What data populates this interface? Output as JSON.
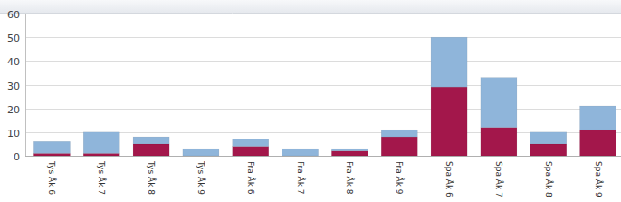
{
  "chart_data": {
    "type": "bar",
    "stacked": true,
    "grid": true,
    "categories": [
      "Tys Åk 6",
      "Tys Åk 7",
      "Tys Åk 8",
      "Tys Åk 9",
      "Fra Åk 6",
      "Fra Åk 7",
      "Fra Åk 8",
      "Fra Åk 9",
      "Spa Åk 6",
      "Spa Åk 7",
      "Spa Åk 8",
      "Spa Åk 9"
    ],
    "series": [
      {
        "color": "#a3174b",
        "values": [
          1,
          1,
          5,
          0,
          4,
          0,
          2,
          8,
          29,
          12,
          5,
          11
        ]
      },
      {
        "color": "#8fb5da",
        "values": [
          5,
          9,
          3,
          3,
          3,
          3,
          1,
          3,
          21,
          21,
          5,
          10
        ]
      }
    ],
    "ylim": [
      0,
      60
    ],
    "yticks": [
      0,
      10,
      20,
      30,
      40,
      50,
      60
    ]
  }
}
